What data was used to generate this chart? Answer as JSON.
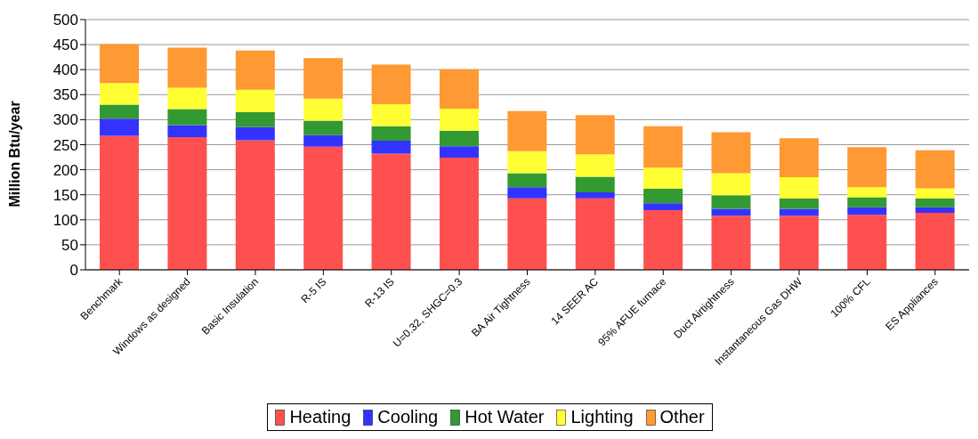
{
  "chart_data": {
    "type": "bar",
    "stacked": true,
    "ylabel": "Million Btu/year",
    "categories": [
      "Benchmark",
      "Windows as designed",
      "Basic Insulation",
      "R-5 IS",
      "R-13 IS",
      "U=0.32, SHGC=0.3",
      "BA Air Tightness",
      "14 SEER AC",
      "95% AFUE furnace",
      "Duct Airtightness",
      "Instantaneous Gas DHW",
      "100% CFL",
      "ES Appliances"
    ],
    "series": [
      {
        "name": "Heating",
        "color": "#ff5050",
        "values": [
          268,
          265,
          259,
          246,
          232,
          224,
          143,
          143,
          119,
          108,
          108,
          110,
          114
        ]
      },
      {
        "name": "Cooling",
        "color": "#3333ff",
        "values": [
          34,
          24,
          26,
          23,
          26,
          23,
          22,
          12,
          14,
          14,
          14,
          15,
          11
        ]
      },
      {
        "name": "Hot Water",
        "color": "#339933",
        "values": [
          28,
          32,
          30,
          29,
          29,
          31,
          28,
          31,
          29,
          27,
          21,
          20,
          18
        ]
      },
      {
        "name": "Lighting",
        "color": "#ffff33",
        "values": [
          43,
          43,
          45,
          44,
          44,
          44,
          44,
          45,
          42,
          44,
          42,
          20,
          20
        ]
      },
      {
        "name": "Other",
        "color": "#ff9933",
        "values": [
          78,
          80,
          78,
          81,
          79,
          79,
          80,
          78,
          83,
          82,
          78,
          80,
          76
        ]
      }
    ],
    "ylim": [
      0,
      500
    ],
    "yticks": [
      0,
      50,
      100,
      150,
      200,
      250,
      300,
      350,
      400,
      450,
      500
    ],
    "grid": "y",
    "legend": "bottom"
  }
}
